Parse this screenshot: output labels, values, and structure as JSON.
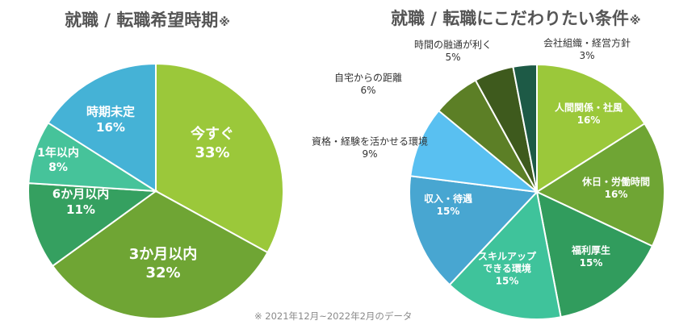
{
  "charts": [
    {
      "title": "就職 / 転職希望時期",
      "title_mark": "※",
      "chart_data": {
        "type": "pie",
        "title": "就職 / 転職希望時期",
        "categories": [
          "今すぐ",
          "3か月以内",
          "6か月以内",
          "1年以内",
          "時期未定"
        ],
        "values": [
          33,
          32,
          11,
          8,
          16
        ],
        "value_labels": [
          "33%",
          "32%",
          "11%",
          "8%",
          "16%"
        ],
        "colors": [
          "#9bc83a",
          "#6fa534",
          "#35a060",
          "#46c39a",
          "#45b2d6"
        ],
        "start": "top, clockwise"
      }
    },
    {
      "title": "就職 / 転職にこだわりたい条件",
      "title_mark": "※",
      "chart_data": {
        "type": "pie",
        "title": "就職 / 転職にこだわりたい条件",
        "categories": [
          "人間関係・社風",
          "休日・労働時間",
          "福利厚生",
          "スキルアップ\nできる環境",
          "収入・待遇",
          "資格・経験を活かせる環境",
          "自宅からの距離",
          "時間の融通が利く",
          "会社組織・経営方針"
        ],
        "values": [
          16,
          16,
          15,
          15,
          15,
          9,
          6,
          5,
          3
        ],
        "value_labels": [
          "16%",
          "16%",
          "15%",
          "15%",
          "15%",
          "9%",
          "6%",
          "5%",
          "3%"
        ],
        "colors": [
          "#9bc83a",
          "#6fa534",
          "#319c5d",
          "#3fc39b",
          "#48a6d1",
          "#59c0f1",
          "#5c7f26",
          "#3e5a1d",
          "#1d5a46"
        ],
        "start": "top, clockwise"
      }
    }
  ],
  "footnote": "※ 2021年12月~2022年2月のデータ"
}
